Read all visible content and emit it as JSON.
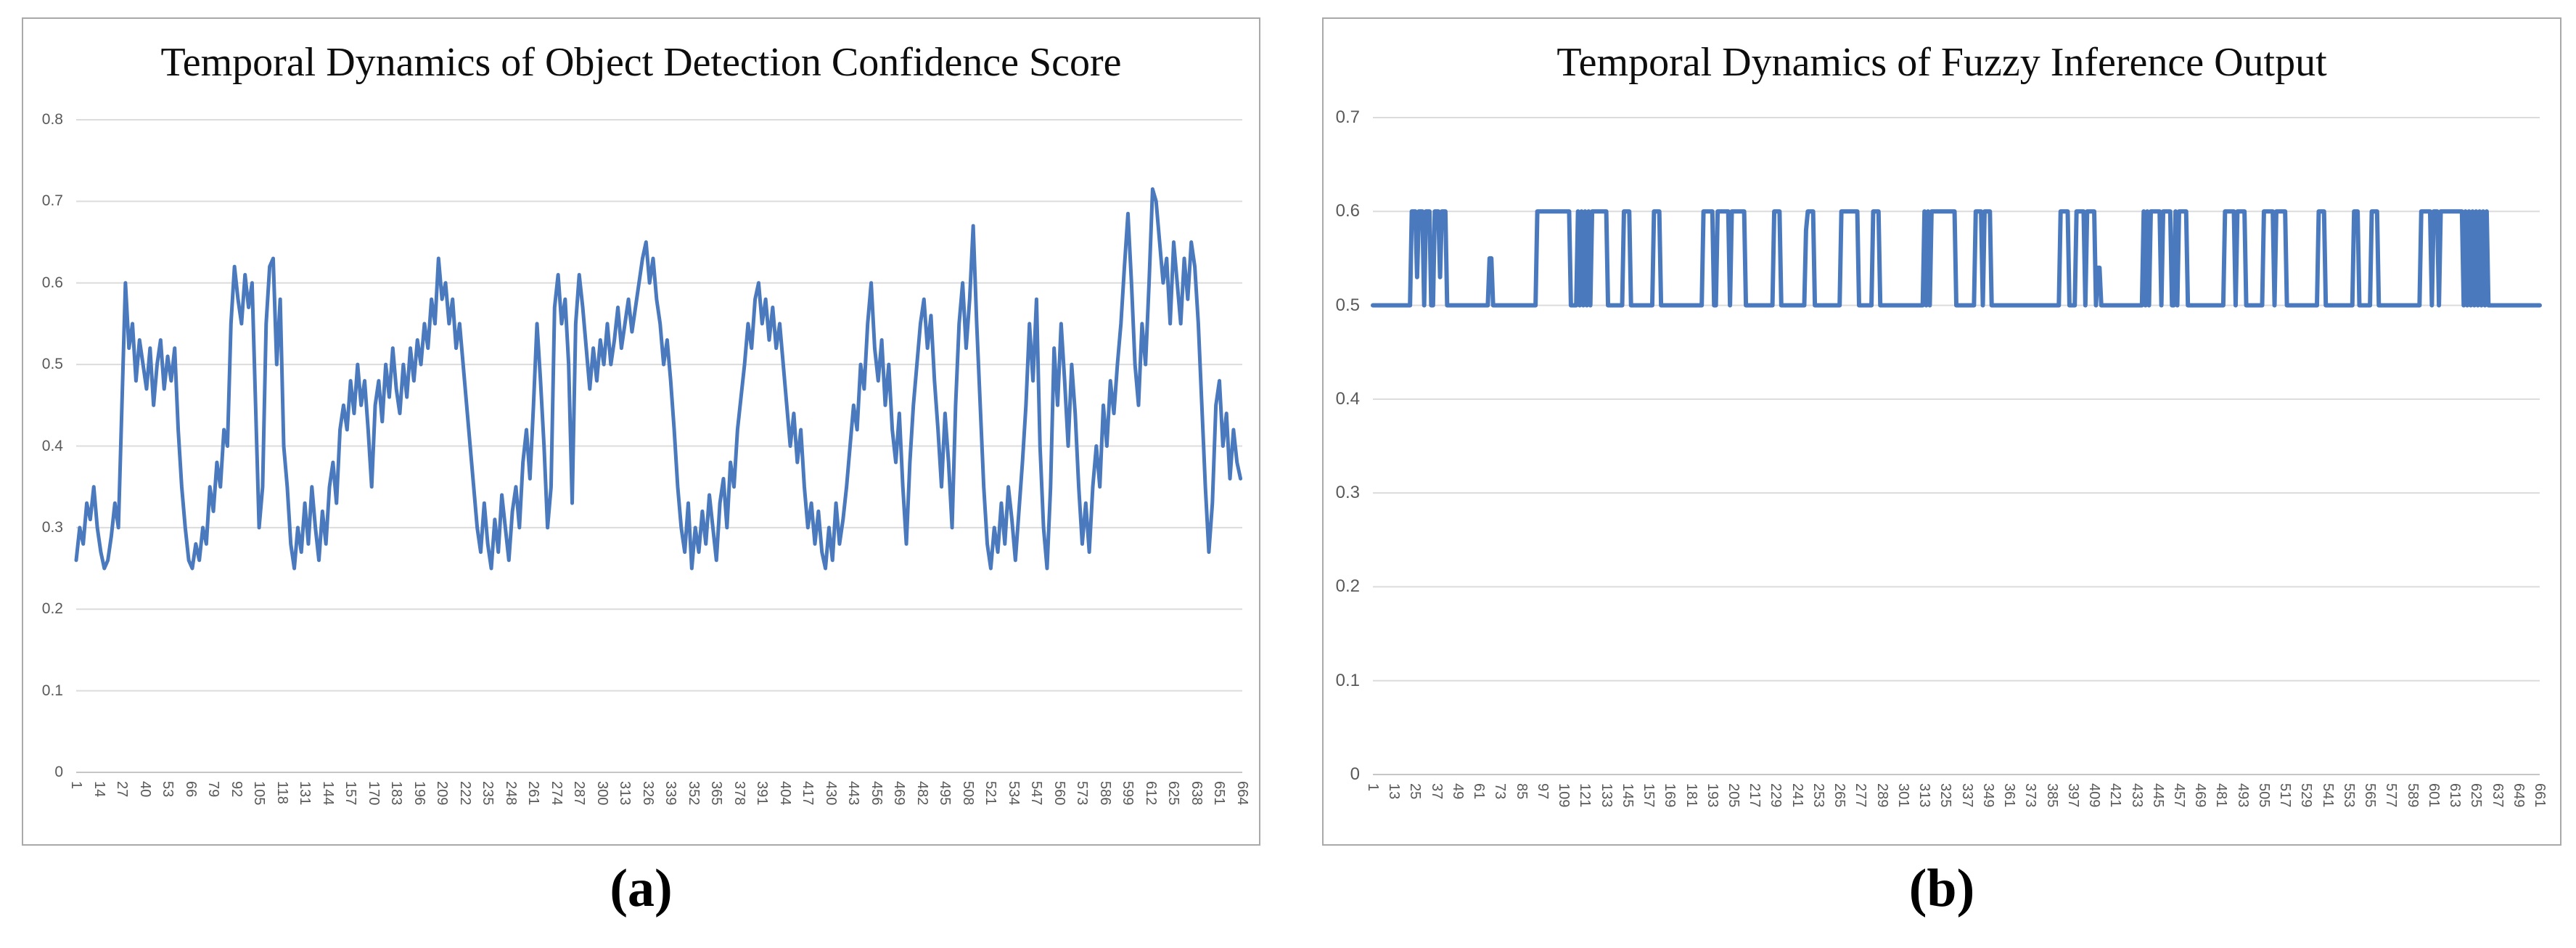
{
  "figure": {
    "caption_a": "(a)",
    "caption_b": "(b)",
    "colors": {
      "line": "#4a7abd",
      "grid": "#dcdcdc",
      "axis": "#c6c6c6",
      "tick_label": "#595959",
      "panel_border": "#a9a9a9",
      "title": "#0d0d0d"
    }
  },
  "chart_data": [
    {
      "type": "line",
      "panel": "a",
      "title": "Temporal Dynamics of Object Detection Confidence Score",
      "grid": true,
      "legend": "none",
      "ylim": [
        0,
        0.8
      ],
      "yticks": [
        "0.8",
        "0.7",
        "0.6",
        "0.5",
        "0.4",
        "0.3",
        "0.2",
        "0.1",
        "0"
      ],
      "x_first": 1,
      "x_last": 664,
      "xtick_step": 13,
      "xticks": [
        1,
        14,
        27,
        40,
        53,
        66,
        79,
        92,
        105,
        118,
        131,
        144,
        157,
        170,
        183,
        196,
        209,
        222,
        235,
        248,
        261,
        274,
        287,
        300,
        313,
        326,
        339,
        352,
        365,
        378,
        391,
        404,
        417,
        430,
        443,
        456,
        469,
        482,
        495,
        508,
        521,
        534,
        547,
        560,
        573,
        586,
        599,
        612,
        625,
        638,
        651,
        664
      ],
      "series": [
        {
          "x_start": 1,
          "x_step": 2,
          "values": [
            0.26,
            0.3,
            0.28,
            0.33,
            0.31,
            0.35,
            0.3,
            0.27,
            0.25,
            0.26,
            0.29,
            0.33,
            0.3,
            0.45,
            0.6,
            0.52,
            0.55,
            0.48,
            0.53,
            0.5,
            0.47,
            0.52,
            0.45,
            0.5,
            0.53,
            0.47,
            0.51,
            0.48,
            0.52,
            0.42,
            0.35,
            0.3,
            0.26,
            0.25,
            0.28,
            0.26,
            0.3,
            0.28,
            0.35,
            0.32,
            0.38,
            0.35,
            0.42,
            0.4,
            0.55,
            0.62,
            0.58,
            0.55,
            0.61,
            0.57,
            0.6,
            0.45,
            0.3,
            0.35,
            0.55,
            0.62,
            0.63,
            0.5,
            0.58,
            0.4,
            0.35,
            0.28,
            0.25,
            0.3,
            0.27,
            0.33,
            0.28,
            0.35,
            0.3,
            0.26,
            0.32,
            0.28,
            0.35,
            0.38,
            0.33,
            0.42,
            0.45,
            0.42,
            0.48,
            0.44,
            0.5,
            0.45,
            0.48,
            0.42,
            0.35,
            0.45,
            0.48,
            0.43,
            0.5,
            0.46,
            0.52,
            0.47,
            0.44,
            0.5,
            0.46,
            0.52,
            0.48,
            0.53,
            0.5,
            0.55,
            0.52,
            0.58,
            0.55,
            0.63,
            0.58,
            0.6,
            0.55,
            0.58,
            0.52,
            0.55,
            0.5,
            0.45,
            0.4,
            0.35,
            0.3,
            0.27,
            0.33,
            0.28,
            0.25,
            0.31,
            0.27,
            0.34,
            0.3,
            0.26,
            0.32,
            0.35,
            0.3,
            0.38,
            0.42,
            0.36,
            0.45,
            0.55,
            0.48,
            0.4,
            0.3,
            0.35,
            0.57,
            0.61,
            0.55,
            0.58,
            0.5,
            0.33,
            0.55,
            0.61,
            0.57,
            0.52,
            0.47,
            0.52,
            0.48,
            0.53,
            0.5,
            0.55,
            0.5,
            0.53,
            0.57,
            0.52,
            0.55,
            0.58,
            0.54,
            0.57,
            0.6,
            0.63,
            0.65,
            0.6,
            0.63,
            0.58,
            0.55,
            0.5,
            0.53,
            0.48,
            0.42,
            0.35,
            0.3,
            0.27,
            0.33,
            0.25,
            0.3,
            0.27,
            0.32,
            0.28,
            0.34,
            0.3,
            0.26,
            0.33,
            0.36,
            0.3,
            0.38,
            0.35,
            0.42,
            0.46,
            0.5,
            0.55,
            0.52,
            0.58,
            0.6,
            0.55,
            0.58,
            0.53,
            0.57,
            0.52,
            0.55,
            0.5,
            0.45,
            0.4,
            0.44,
            0.38,
            0.42,
            0.35,
            0.3,
            0.33,
            0.28,
            0.32,
            0.27,
            0.25,
            0.3,
            0.26,
            0.33,
            0.28,
            0.31,
            0.35,
            0.4,
            0.45,
            0.42,
            0.5,
            0.47,
            0.55,
            0.6,
            0.52,
            0.48,
            0.53,
            0.45,
            0.5,
            0.42,
            0.38,
            0.44,
            0.35,
            0.28,
            0.38,
            0.45,
            0.5,
            0.55,
            0.58,
            0.52,
            0.56,
            0.48,
            0.42,
            0.35,
            0.44,
            0.38,
            0.3,
            0.45,
            0.55,
            0.6,
            0.52,
            0.58,
            0.67,
            0.55,
            0.45,
            0.35,
            0.28,
            0.25,
            0.3,
            0.27,
            0.33,
            0.28,
            0.35,
            0.31,
            0.26,
            0.32,
            0.38,
            0.45,
            0.55,
            0.48,
            0.58,
            0.4,
            0.3,
            0.25,
            0.35,
            0.52,
            0.45,
            0.55,
            0.48,
            0.4,
            0.5,
            0.44,
            0.35,
            0.28,
            0.33,
            0.27,
            0.35,
            0.4,
            0.35,
            0.45,
            0.4,
            0.48,
            0.44,
            0.5,
            0.55,
            0.62,
            0.685,
            0.6,
            0.5,
            0.45,
            0.55,
            0.5,
            0.6,
            0.715,
            0.7,
            0.65,
            0.6,
            0.63,
            0.55,
            0.65,
            0.6,
            0.55,
            0.63,
            0.58,
            0.65,
            0.62,
            0.55,
            0.45,
            0.35,
            0.27,
            0.33,
            0.45,
            0.48,
            0.4,
            0.44,
            0.36,
            0.42,
            0.38,
            0.36
          ]
        }
      ]
    },
    {
      "type": "line",
      "panel": "b",
      "title": "Temporal Dynamics of Fuzzy Inference Output",
      "grid": true,
      "legend": "none",
      "ylim": [
        0,
        0.7
      ],
      "yticks": [
        "0.7",
        "0.6",
        "0.5",
        "0.4",
        "0.3",
        "0.2",
        "0.1",
        "0"
      ],
      "x_first": 1,
      "x_last": 661,
      "xtick_step": 12,
      "xticks": [
        1,
        13,
        25,
        37,
        49,
        61,
        73,
        85,
        97,
        109,
        121,
        133,
        145,
        157,
        169,
        181,
        193,
        205,
        217,
        229,
        241,
        253,
        265,
        277,
        289,
        301,
        313,
        325,
        337,
        349,
        361,
        373,
        385,
        397,
        409,
        421,
        433,
        445,
        457,
        469,
        481,
        493,
        505,
        517,
        529,
        541,
        553,
        565,
        577,
        589,
        601,
        613,
        625,
        637,
        649,
        661
      ],
      "square_wave": {
        "n_points": 661,
        "baseline": 0.5,
        "high": 0.6,
        "runs": [
          [
            23,
            25,
            0.6
          ],
          [
            26,
            26,
            0.53
          ],
          [
            27,
            29,
            0.6
          ],
          [
            31,
            33,
            0.6
          ],
          [
            36,
            38,
            0.6
          ],
          [
            39,
            39,
            0.53
          ],
          [
            40,
            42,
            0.6
          ],
          [
            67,
            68,
            0.55
          ],
          [
            94,
            112,
            0.6
          ],
          [
            117,
            125,
            "alt"
          ],
          [
            126,
            133,
            0.6
          ],
          [
            143,
            146,
            0.6
          ],
          [
            160,
            163,
            0.6
          ],
          [
            188,
            193,
            0.6
          ],
          [
            196,
            202,
            0.6
          ],
          [
            204,
            211,
            0.6
          ],
          [
            228,
            231,
            0.6
          ],
          [
            246,
            246,
            0.58
          ],
          [
            247,
            250,
            0.6
          ],
          [
            266,
            275,
            0.6
          ],
          [
            284,
            287,
            0.6
          ],
          [
            313,
            317,
            "alt"
          ],
          [
            318,
            330,
            0.6
          ],
          [
            342,
            345,
            0.6
          ],
          [
            347,
            350,
            0.6
          ],
          [
            390,
            394,
            0.6
          ],
          [
            399,
            403,
            0.6
          ],
          [
            405,
            409,
            0.6
          ],
          [
            411,
            412,
            0.54
          ],
          [
            437,
            441,
            "alt"
          ],
          [
            442,
            446,
            0.6
          ],
          [
            448,
            452,
            0.6
          ],
          [
            454,
            456,
            "alt"
          ],
          [
            457,
            461,
            0.6
          ],
          [
            483,
            488,
            0.6
          ],
          [
            490,
            494,
            0.6
          ],
          [
            505,
            510,
            0.6
          ],
          [
            512,
            517,
            0.6
          ],
          [
            536,
            539,
            0.6
          ],
          [
            556,
            558,
            0.6
          ],
          [
            566,
            569,
            0.6
          ],
          [
            594,
            599,
            0.6
          ],
          [
            601,
            603,
            0.6
          ],
          [
            605,
            617,
            0.6
          ],
          [
            619,
            631,
            "alt"
          ]
        ]
      }
    }
  ]
}
